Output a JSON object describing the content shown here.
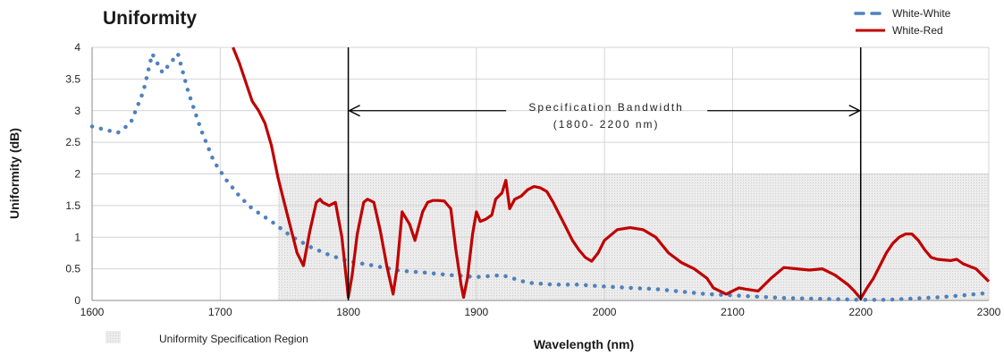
{
  "chart_data": {
    "type": "line",
    "title": "Uniformity",
    "xlabel": "Wavelength (nm)",
    "ylabel": "Uniformity (dB)",
    "xlim": [
      1600,
      2300
    ],
    "ylim": [
      0,
      4
    ],
    "x_ticks": [
      "1600",
      "1700",
      "1800",
      "1900",
      "2000",
      "2100",
      "2200",
      "2300"
    ],
    "y_ticks": [
      "0",
      "0.5",
      "1",
      "1.5",
      "2",
      "2.5",
      "3",
      "3.5",
      "4"
    ],
    "grid": true,
    "legend_position": "top-right",
    "colors": {
      "white_white": "#4f81bd",
      "white_red": "#c00000",
      "spec_region": "#e4e4e4"
    },
    "spec_region": {
      "label": "Uniformity Specification Region",
      "x_range": [
        1745,
        2300
      ],
      "y_range": [
        0,
        2
      ]
    },
    "annotation": {
      "line1": "Specification Bandwidth",
      "line2": "(1800- 2200 nm)",
      "x_range": [
        1800,
        2200
      ],
      "y": 3.0
    },
    "series": [
      {
        "name": "White-White",
        "style": "dotted",
        "x": [
          1600,
          1610,
          1620,
          1630,
          1640,
          1647,
          1655,
          1667,
          1675,
          1685,
          1695,
          1705,
          1715,
          1725,
          1740,
          1755,
          1770,
          1785,
          1800,
          1820,
          1840,
          1860,
          1880,
          1900,
          1920,
          1940,
          1960,
          1980,
          2000,
          2020,
          2040,
          2060,
          2080,
          2100,
          2120,
          2140,
          2160,
          2180,
          2200,
          2220,
          2240,
          2260,
          2280,
          2300
        ],
        "y": [
          2.75,
          2.7,
          2.65,
          2.8,
          3.3,
          3.9,
          3.6,
          3.9,
          3.3,
          2.7,
          2.2,
          1.9,
          1.65,
          1.45,
          1.25,
          1.02,
          0.85,
          0.72,
          0.62,
          0.55,
          0.47,
          0.44,
          0.4,
          0.37,
          0.4,
          0.28,
          0.25,
          0.25,
          0.22,
          0.2,
          0.18,
          0.14,
          0.1,
          0.08,
          0.06,
          0.04,
          0.03,
          0.02,
          0.01,
          0.01,
          0.03,
          0.05,
          0.08,
          0.12
        ]
      },
      {
        "name": "White-Red",
        "style": "solid",
        "x": [
          1710,
          1715,
          1720,
          1725,
          1730,
          1735,
          1740,
          1745,
          1750,
          1755,
          1760,
          1765,
          1770,
          1775,
          1778,
          1780,
          1785,
          1790,
          1795,
          1800,
          1803,
          1807,
          1812,
          1815,
          1820,
          1825,
          1830,
          1835,
          1838,
          1842,
          1848,
          1852,
          1858,
          1862,
          1866,
          1870,
          1875,
          1880,
          1884,
          1888,
          1890,
          1893,
          1897,
          1900,
          1903,
          1907,
          1912,
          1915,
          1920,
          1923,
          1926,
          1930,
          1935,
          1940,
          1945,
          1950,
          1955,
          1960,
          1965,
          1970,
          1975,
          1980,
          1985,
          1990,
          1995,
          2000,
          2010,
          2020,
          2030,
          2040,
          2050,
          2060,
          2070,
          2080,
          2085,
          2090,
          2095,
          2100,
          2105,
          2110,
          2120,
          2130,
          2140,
          2150,
          2160,
          2170,
          2180,
          2190,
          2195,
          2200,
          2205,
          2210,
          2215,
          2220,
          2225,
          2230,
          2235,
          2240,
          2245,
          2250,
          2255,
          2260,
          2270,
          2275,
          2280,
          2290,
          2300
        ],
        "y": [
          4.0,
          3.75,
          3.45,
          3.15,
          3.0,
          2.8,
          2.45,
          1.95,
          1.55,
          1.15,
          0.75,
          0.55,
          1.1,
          1.55,
          1.6,
          1.55,
          1.5,
          1.55,
          1.0,
          0.05,
          0.4,
          1.05,
          1.55,
          1.6,
          1.55,
          1.1,
          0.55,
          0.1,
          0.5,
          1.4,
          1.2,
          0.95,
          1.4,
          1.55,
          1.58,
          1.58,
          1.57,
          1.45,
          0.8,
          0.25,
          0.05,
          0.35,
          1.05,
          1.4,
          1.25,
          1.28,
          1.35,
          1.6,
          1.7,
          1.9,
          1.45,
          1.6,
          1.65,
          1.75,
          1.8,
          1.78,
          1.72,
          1.55,
          1.35,
          1.15,
          0.95,
          0.8,
          0.68,
          0.62,
          0.75,
          0.95,
          1.12,
          1.15,
          1.12,
          1.0,
          0.75,
          0.6,
          0.5,
          0.35,
          0.2,
          0.15,
          0.1,
          0.15,
          0.2,
          0.18,
          0.15,
          0.35,
          0.52,
          0.5,
          0.48,
          0.5,
          0.4,
          0.25,
          0.15,
          0.03,
          0.2,
          0.35,
          0.55,
          0.75,
          0.9,
          1.0,
          1.05,
          1.05,
          0.95,
          0.8,
          0.68,
          0.65,
          0.63,
          0.65,
          0.58,
          0.5,
          0.3
        ]
      }
    ]
  }
}
